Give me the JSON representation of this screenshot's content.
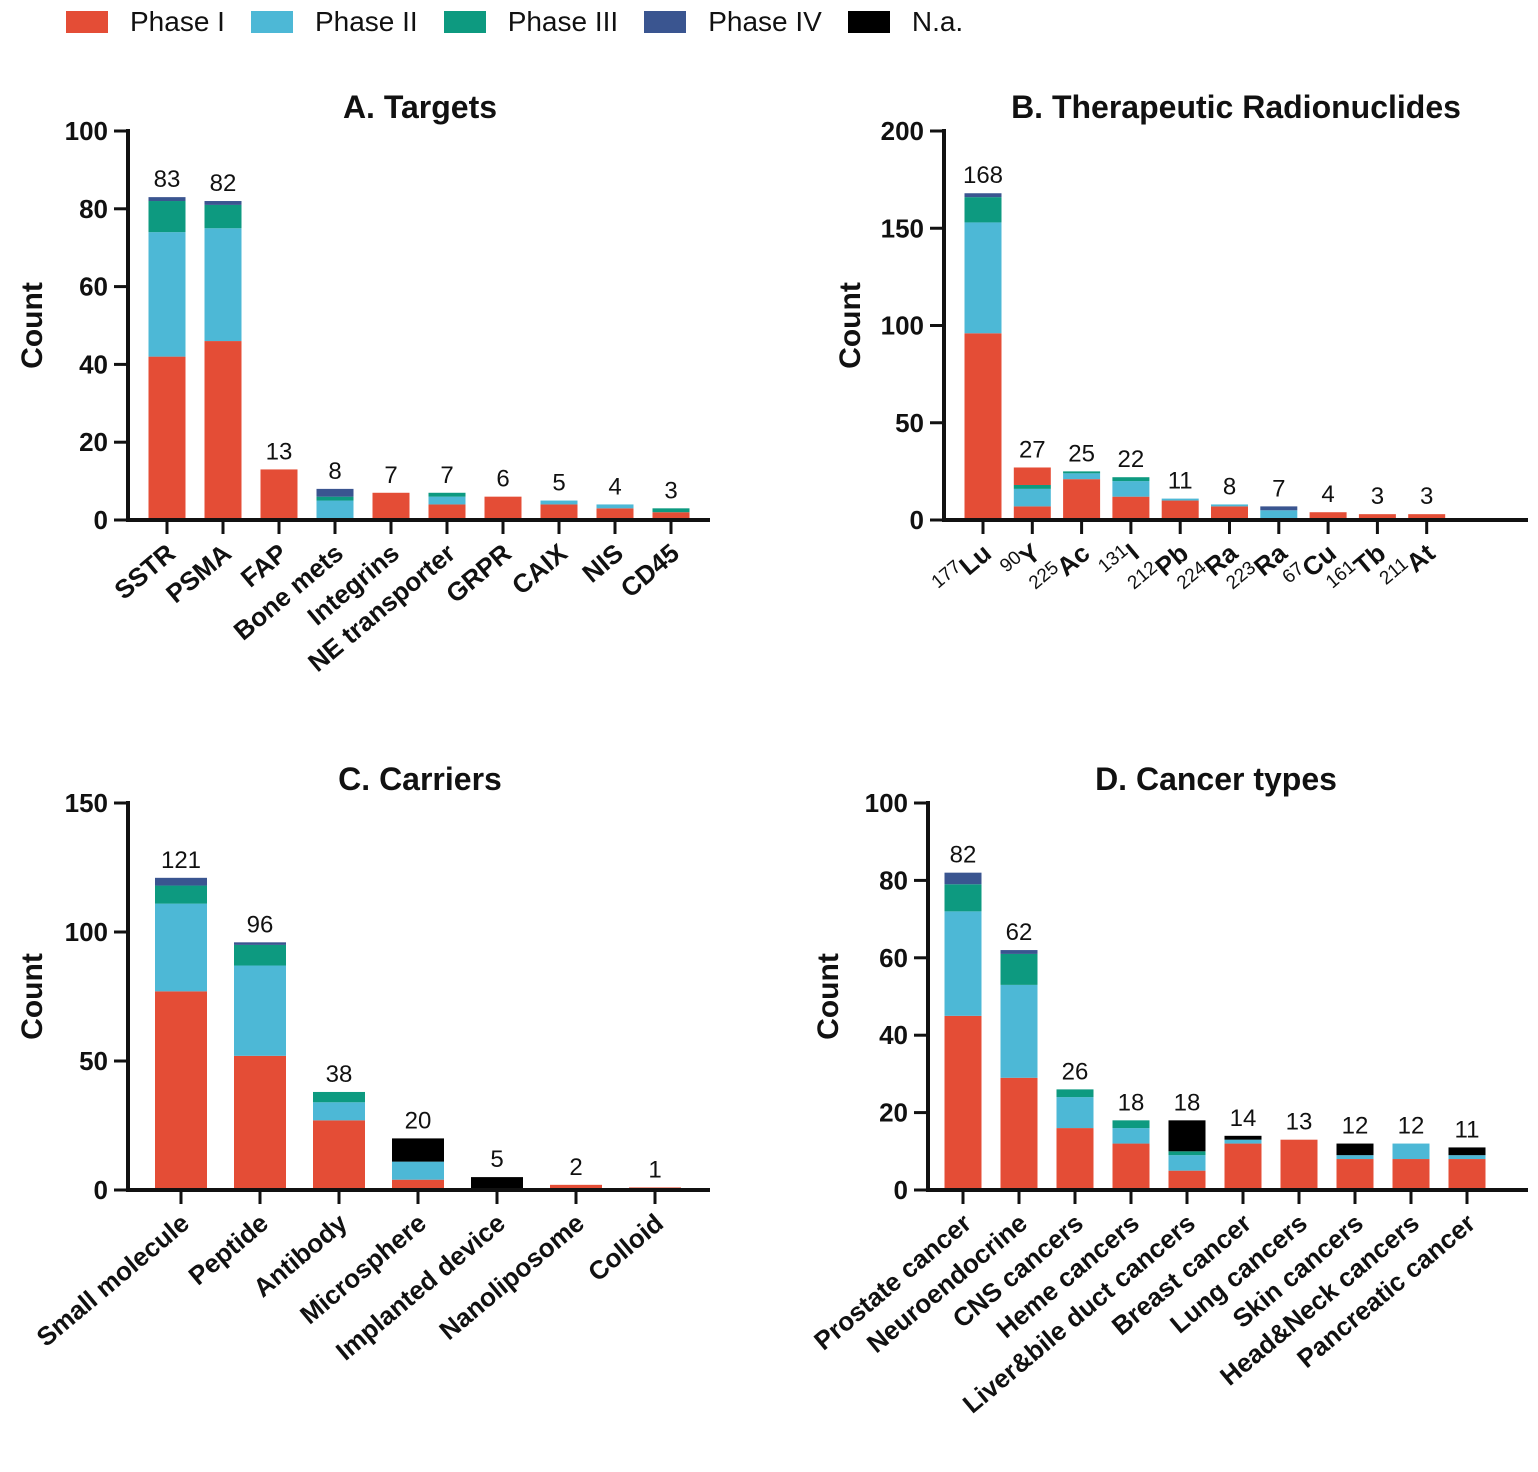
{
  "legend": [
    {
      "name": "Phase I",
      "color": "#e44d36"
    },
    {
      "name": "Phase II",
      "color": "#4db8d6"
    },
    {
      "name": "Phase III",
      "color": "#0d9a80"
    },
    {
      "name": "Phase IV",
      "color": "#3a5590"
    },
    {
      "name": "N.a.",
      "color": "#000000"
    }
  ],
  "chart_data": [
    {
      "type": "bar",
      "stacked": true,
      "title": "A. Targets",
      "ylabel": "Count",
      "xlabel": "",
      "ylim": [
        0,
        100
      ],
      "yticks": [
        0,
        20,
        40,
        60,
        80,
        100
      ],
      "categories": [
        "SSTR",
        "PSMA",
        "FAP",
        "Bone mets",
        "Integrins",
        "NE transporter",
        "GRPR",
        "CAIX",
        "NIS",
        "CD45"
      ],
      "totals": [
        83,
        82,
        13,
        8,
        7,
        7,
        6,
        5,
        4,
        3
      ],
      "series": [
        {
          "name": "Phase I",
          "values": [
            42,
            46,
            13,
            0.5,
            7,
            4,
            6,
            4,
            3,
            2
          ]
        },
        {
          "name": "Phase II",
          "values": [
            32,
            29,
            0,
            4.5,
            0,
            2,
            0,
            1,
            1,
            0
          ]
        },
        {
          "name": "Phase III",
          "values": [
            8,
            6,
            0,
            1,
            0,
            1,
            0,
            0,
            0,
            1
          ]
        },
        {
          "name": "Phase IV",
          "values": [
            1,
            1,
            0,
            2,
            0,
            0,
            0,
            0,
            0,
            0
          ]
        },
        {
          "name": "N.a.",
          "values": [
            0,
            0,
            0,
            0,
            0,
            0,
            0,
            0,
            0,
            0
          ]
        }
      ]
    },
    {
      "type": "bar",
      "stacked": true,
      "title": "B. Therapeutic Radionuclides",
      "ylabel": "Count",
      "xlabel": "",
      "ylim": [
        0,
        200
      ],
      "yticks": [
        0,
        50,
        100,
        150,
        200
      ],
      "categories": [
        "177Lu",
        "90Y",
        "225Ac",
        "131I",
        "212Pb",
        "224Ra",
        "223Ra",
        "67Cu",
        "161Tb",
        "211At"
      ],
      "category_parts": [
        {
          "mass": "177",
          "element": "Lu"
        },
        {
          "mass": "90",
          "element": "Y"
        },
        {
          "mass": "225",
          "element": "Ac"
        },
        {
          "mass": "131",
          "element": "I"
        },
        {
          "mass": "212",
          "element": "Pb"
        },
        {
          "mass": "224",
          "element": "Ra"
        },
        {
          "mass": "223",
          "element": "Ra"
        },
        {
          "mass": "67",
          "element": "Cu"
        },
        {
          "mass": "161",
          "element": "Tb"
        },
        {
          "mass": "211",
          "element": "At"
        }
      ],
      "totals": [
        168,
        27,
        25,
        22,
        11,
        8,
        7,
        4,
        3,
        3
      ],
      "series": [
        {
          "name": "Phase I",
          "values": [
            96,
            7,
            21,
            12,
            10,
            7,
            0,
            4,
            3,
            3
          ]
        },
        {
          "name": "Phase II",
          "values": [
            57,
            9,
            3,
            8,
            1,
            1,
            5,
            0,
            0,
            0
          ]
        },
        {
          "name": "Phase III",
          "values": [
            13,
            2,
            1,
            2,
            0,
            0,
            0,
            0,
            0,
            0
          ]
        },
        {
          "name": "Phase IV",
          "values": [
            2,
            0,
            0,
            0,
            0,
            0,
            2,
            0,
            0,
            0
          ]
        },
        {
          "name": "N.a.",
          "values": [
            0,
            0,
            0,
            0,
            0,
            0,
            0,
            0,
            0,
            0
          ]
        },
        {
          "name": "Phase I (upper, as drawn)",
          "values": [
            0,
            9,
            0,
            0,
            0,
            0,
            0,
            0,
            0,
            0
          ]
        }
      ]
    },
    {
      "type": "bar",
      "stacked": true,
      "title": "C. Carriers",
      "ylabel": "Count",
      "xlabel": "",
      "ylim": [
        0,
        150
      ],
      "yticks": [
        0,
        50,
        100,
        150
      ],
      "categories": [
        "Small molecule",
        "Peptide",
        "Antibody",
        "Microsphere",
        "Implanted device",
        "Nanoliposome",
        "Colloid"
      ],
      "totals": [
        121,
        96,
        38,
        20,
        5,
        2,
        1
      ],
      "series": [
        {
          "name": "Phase I",
          "values": [
            77,
            52,
            27,
            4,
            0,
            2,
            1
          ]
        },
        {
          "name": "Phase II",
          "values": [
            34,
            35,
            7,
            7,
            0,
            0,
            0
          ]
        },
        {
          "name": "Phase III",
          "values": [
            7,
            8,
            4,
            0,
            0,
            0,
            0
          ]
        },
        {
          "name": "Phase IV",
          "values": [
            3,
            1,
            0,
            0,
            0,
            0,
            0
          ]
        },
        {
          "name": "N.a.",
          "values": [
            0,
            0,
            0,
            9,
            5,
            0,
            0
          ]
        }
      ]
    },
    {
      "type": "bar",
      "stacked": true,
      "title": "D. Cancer types",
      "ylabel": "Count",
      "xlabel": "",
      "ylim": [
        0,
        100
      ],
      "yticks": [
        0,
        20,
        40,
        60,
        80,
        100
      ],
      "categories": [
        "Prostate cancer",
        "Neuroendocrine",
        "CNS cancers",
        "Heme cancers",
        "Liver&bile duct cancers",
        "Breast cancer",
        "Lung cancers",
        "Skin cancers",
        "Head&Neck cancers",
        "Pancreatic cancer"
      ],
      "totals": [
        82,
        62,
        26,
        18,
        18,
        14,
        13,
        12,
        12,
        11
      ],
      "series": [
        {
          "name": "Phase I",
          "values": [
            45,
            29,
            16,
            12,
            5,
            12,
            13,
            8,
            8,
            8
          ]
        },
        {
          "name": "Phase II",
          "values": [
            27,
            24,
            8,
            4,
            4,
            1,
            0,
            1,
            4,
            1
          ]
        },
        {
          "name": "Phase III",
          "values": [
            7,
            8,
            2,
            2,
            1,
            0,
            0,
            0,
            0,
            0
          ]
        },
        {
          "name": "Phase IV",
          "values": [
            3,
            1,
            0,
            0,
            0,
            0,
            0,
            0,
            0,
            0
          ]
        },
        {
          "name": "N.a.",
          "values": [
            0,
            0,
            0,
            0,
            8,
            1,
            0,
            3,
            0,
            2
          ]
        }
      ]
    }
  ]
}
